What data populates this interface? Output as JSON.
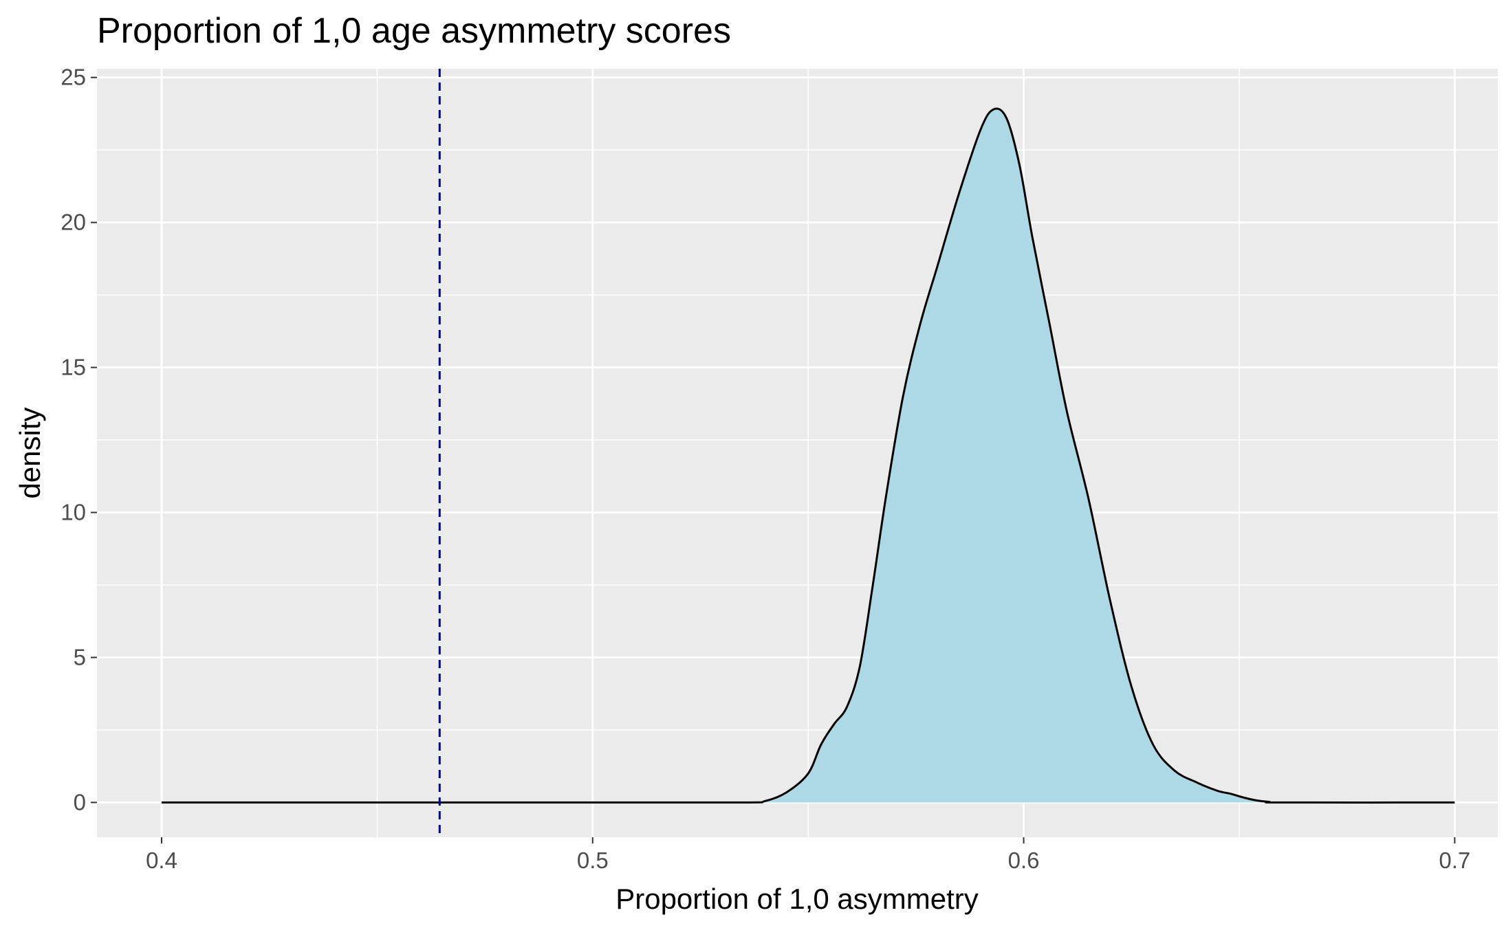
{
  "chart_data": {
    "type": "area",
    "title": "Proportion of 1,0 age asymmetry scores",
    "xlabel": "Proportion of 1,0 asymmetry",
    "ylabel": "density",
    "xlim": [
      0.385,
      0.71
    ],
    "ylim": [
      -1.2,
      25.3
    ],
    "x_ticks": [
      0.4,
      0.5,
      0.6,
      0.7
    ],
    "x_tick_labels": [
      "0.4",
      "0.5",
      "0.6",
      "0.7"
    ],
    "y_ticks": [
      0,
      5,
      10,
      15,
      20,
      25
    ],
    "y_tick_labels": [
      "0",
      "5",
      "10",
      "15",
      "20",
      "25"
    ],
    "x_minor_ticks": [
      0.45,
      0.55,
      0.65
    ],
    "y_minor_ticks": [
      2.5,
      7.5,
      12.5,
      17.5,
      22.5
    ],
    "grid": true,
    "fill_color": "#add8e6",
    "line_color": "#000000",
    "panel_color": "#ebebeb",
    "reference_line": {
      "x": 0.4645,
      "color": "#00008b",
      "style": "dashed"
    },
    "series": [
      {
        "x": [
          0.4,
          0.45,
          0.5,
          0.535,
          0.54,
          0.545,
          0.55,
          0.553,
          0.556,
          0.559,
          0.562,
          0.565,
          0.568,
          0.572,
          0.576,
          0.58,
          0.585,
          0.59,
          0.593,
          0.596,
          0.599,
          0.602,
          0.606,
          0.61,
          0.615,
          0.62,
          0.625,
          0.63,
          0.635,
          0.64,
          0.645,
          0.648,
          0.651,
          0.654,
          0.657,
          0.66,
          0.7
        ],
        "y": [
          0,
          0,
          0,
          0,
          0.05,
          0.35,
          1.0,
          2.0,
          2.7,
          3.3,
          4.7,
          7.5,
          10.5,
          14.0,
          16.5,
          18.5,
          21.0,
          23.2,
          23.9,
          23.6,
          22.0,
          19.5,
          16.5,
          13.5,
          10.5,
          7.0,
          4.0,
          2.0,
          1.1,
          0.7,
          0.4,
          0.3,
          0.17,
          0.07,
          0.02,
          0,
          0
        ]
      }
    ]
  }
}
